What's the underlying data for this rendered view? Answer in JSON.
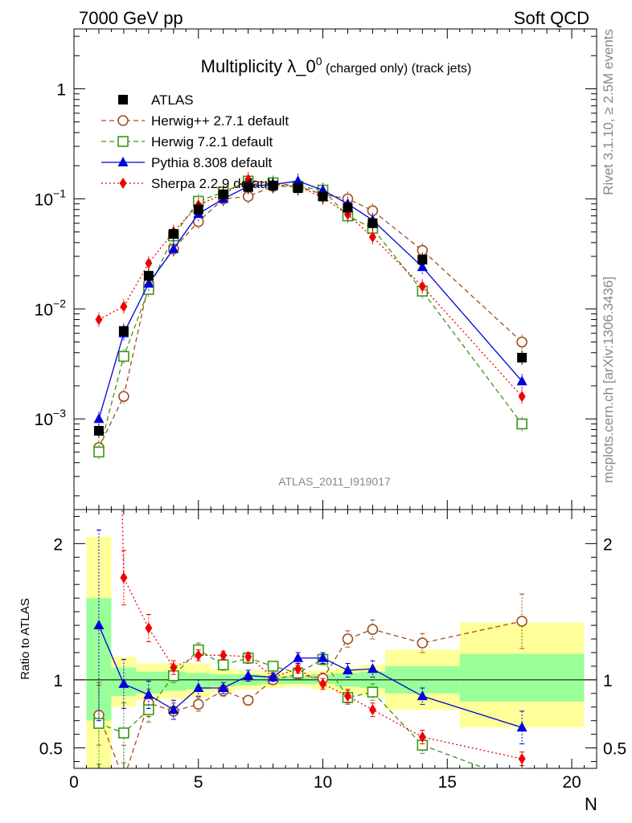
{
  "header": {
    "left_label": "7000 GeV pp",
    "right_label": "Soft QCD"
  },
  "side_labels": {
    "rivet": "Rivet 3.1.10, ≥ 2.5M events",
    "mcplots": "mcplots.cern.ch [arXiv:1306.3436]"
  },
  "chart_data": {
    "type": "scatter",
    "title": "Multiplicity λ_0",
    "title_superscript": "0",
    "title_suffix": " (charged only) (track jets)",
    "watermark": "ATLAS_2011_I919017",
    "xlabel": "N",
    "ylabel_ratio": "Ratio to ATLAS",
    "legend_position": "top-left",
    "x_range": [
      0,
      21
    ],
    "y_range_main": [
      0.00015,
      3.5
    ],
    "y_scale_main": "log",
    "y_range_ratio": [
      0.35,
      2.25
    ],
    "x_ticks": [
      "0",
      "5",
      "10",
      "15",
      "20"
    ],
    "y_ticks_main": [
      "10^-3",
      "10^-2",
      "10^-1",
      "1"
    ],
    "y_ticks_ratio": [
      "0.5",
      "1",
      "2"
    ],
    "colors": {
      "atlas": "#000000",
      "herwigpp": "#a0501e",
      "herwig7": "#3c9614",
      "pythia": "#0000dc",
      "sherpa": "#f00000",
      "band_inner": "#99ff99",
      "band_outer": "#ffff99"
    },
    "bands": [
      {
        "x0": 0.5,
        "x1": 1.5,
        "inner": [
          0.7,
          1.6
        ],
        "outer": [
          0.3,
          2.05
        ]
      },
      {
        "x0": 1.5,
        "x1": 2.5,
        "inner": [
          0.88,
          1.09
        ],
        "outer": [
          0.8,
          1.17
        ]
      },
      {
        "x0": 2.5,
        "x1": 3.5,
        "inner": [
          0.9,
          1.06
        ],
        "outer": [
          0.85,
          1.12
        ]
      },
      {
        "x0": 3.5,
        "x1": 4.5,
        "inner": [
          0.92,
          1.06
        ],
        "outer": [
          0.86,
          1.12
        ]
      },
      {
        "x0": 4.5,
        "x1": 5.5,
        "inner": [
          0.93,
          1.05
        ],
        "outer": [
          0.87,
          1.12
        ]
      },
      {
        "x0": 5.5,
        "x1": 6.5,
        "inner": [
          0.95,
          1.04
        ],
        "outer": [
          0.91,
          1.08
        ]
      },
      {
        "x0": 6.5,
        "x1": 7.5,
        "inner": [
          0.96,
          1.04
        ],
        "outer": [
          0.93,
          1.07
        ]
      },
      {
        "x0": 7.5,
        "x1": 8.5,
        "inner": [
          0.97,
          1.03
        ],
        "outer": [
          0.94,
          1.06
        ]
      },
      {
        "x0": 8.5,
        "x1": 9.5,
        "inner": [
          0.97,
          1.03
        ],
        "outer": [
          0.95,
          1.06
        ]
      },
      {
        "x0": 9.5,
        "x1": 10.5,
        "inner": [
          0.97,
          1.04
        ],
        "outer": [
          0.93,
          1.07
        ]
      },
      {
        "x0": 10.5,
        "x1": 11.5,
        "inner": [
          0.95,
          1.05
        ],
        "outer": [
          0.9,
          1.09
        ]
      },
      {
        "x0": 11.5,
        "x1": 12.5,
        "inner": [
          0.94,
          1.06
        ],
        "outer": [
          0.88,
          1.11
        ]
      },
      {
        "x0": 12.5,
        "x1": 15.5,
        "inner": [
          0.9,
          1.1
        ],
        "outer": [
          0.78,
          1.22
        ]
      },
      {
        "x0": 15.5,
        "x1": 20.5,
        "inner": [
          0.84,
          1.19
        ],
        "outer": [
          0.65,
          1.42
        ]
      }
    ],
    "series": [
      {
        "name": "ATLAS",
        "key": "atlas",
        "marker": "square-filled",
        "line": "none",
        "x": [
          1,
          2,
          3,
          4,
          5,
          6,
          7,
          8,
          9,
          10,
          11,
          12,
          14,
          18
        ],
        "y": [
          0.00078,
          0.0063,
          0.02,
          0.048,
          0.08,
          0.11,
          0.128,
          0.132,
          0.125,
          0.105,
          0.083,
          0.06,
          0.028,
          0.0036
        ]
      },
      {
        "name": "Herwig++ 2.7.1 default",
        "key": "herwigpp",
        "marker": "circle-open",
        "line": "dashed",
        "x": [
          1,
          2,
          3,
          4,
          5,
          6,
          7,
          8,
          9,
          10,
          11,
          12,
          14,
          18
        ],
        "y": [
          0.00055,
          0.0016,
          0.017,
          0.035,
          0.062,
          0.1,
          0.105,
          0.13,
          0.13,
          0.11,
          0.1,
          0.078,
          0.034,
          0.005
        ],
        "ratio": [
          0.74,
          0.27,
          0.83,
          0.77,
          0.82,
          0.92,
          0.85,
          1.0,
          1.04,
          1.01,
          1.3,
          1.37,
          1.27,
          1.43
        ],
        "ratio_err": [
          0.22,
          0.25,
          0.1,
          0.06,
          0.05,
          0.04,
          0.03,
          0.03,
          0.03,
          0.04,
          0.06,
          0.07,
          0.07,
          0.2
        ]
      },
      {
        "name": "Herwig 7.2.1 default",
        "key": "herwig7",
        "marker": "square-open",
        "line": "dashed",
        "x": [
          1,
          2,
          3,
          4,
          5,
          6,
          7,
          8,
          9,
          10,
          11,
          12,
          14,
          18
        ],
        "y": [
          0.0005,
          0.0037,
          0.015,
          0.046,
          0.095,
          0.115,
          0.145,
          0.14,
          0.13,
          0.12,
          0.07,
          0.054,
          0.0145,
          0.0009
        ],
        "ratio": [
          0.68,
          0.61,
          0.78,
          1.03,
          1.22,
          1.11,
          1.16,
          1.1,
          1.05,
          1.15,
          0.87,
          0.91,
          0.52,
          0.25
        ],
        "ratio_err": [
          0.3,
          0.22,
          0.09,
          0.05,
          0.05,
          0.04,
          0.04,
          0.03,
          0.03,
          0.04,
          0.05,
          0.06,
          0.06,
          0.1
        ]
      },
      {
        "name": "Pythia 8.308 default",
        "key": "pythia",
        "marker": "triangle-filled",
        "line": "solid",
        "x": [
          1,
          2,
          3,
          4,
          5,
          6,
          7,
          8,
          9,
          10,
          11,
          12,
          14,
          18
        ],
        "y": [
          0.001,
          0.006,
          0.017,
          0.035,
          0.073,
          0.1,
          0.13,
          0.135,
          0.145,
          0.12,
          0.09,
          0.064,
          0.024,
          0.0022
        ],
        "ratio": [
          1.4,
          0.97,
          0.89,
          0.78,
          0.94,
          0.94,
          1.03,
          1.02,
          1.16,
          1.16,
          1.07,
          1.08,
          0.88,
          0.65
        ],
        "ratio_err": [
          0.7,
          0.18,
          0.1,
          0.07,
          0.06,
          0.04,
          0.04,
          0.03,
          0.04,
          0.04,
          0.05,
          0.06,
          0.06,
          0.12
        ]
      },
      {
        "name": "Sherpa 2.2.9 default",
        "key": "sherpa",
        "marker": "diamond-filled",
        "line": "dotted",
        "x": [
          1,
          2,
          3,
          4,
          5,
          6,
          7,
          8,
          9,
          10,
          11,
          12,
          14,
          18
        ],
        "y": [
          0.008,
          0.0105,
          0.026,
          0.05,
          0.088,
          0.11,
          0.15,
          0.135,
          0.13,
          0.103,
          0.072,
          0.045,
          0.016,
          0.0016
        ],
        "ratio": [
          10.0,
          1.75,
          1.38,
          1.09,
          1.18,
          1.18,
          1.17,
          1.02,
          1.08,
          0.97,
          0.88,
          0.78,
          0.58,
          0.42
        ],
        "ratio_err": [
          0.6,
          0.2,
          0.1,
          0.05,
          0.04,
          0.03,
          0.03,
          0.03,
          0.03,
          0.04,
          0.05,
          0.05,
          0.05,
          0.05
        ]
      }
    ]
  }
}
